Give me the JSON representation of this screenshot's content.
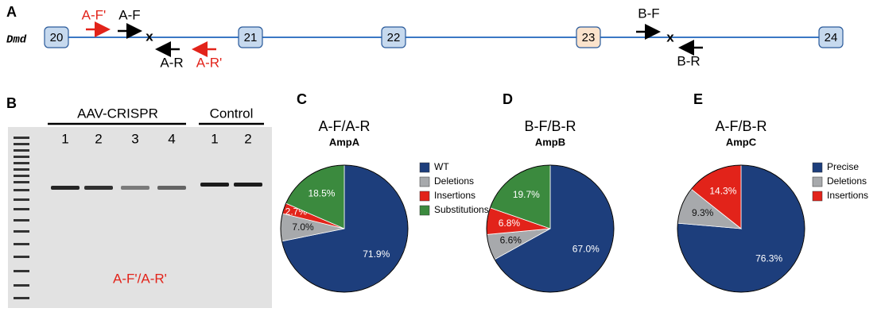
{
  "panel_a": {
    "letter": "A",
    "gene": "Dmd",
    "exons": [
      "20",
      "21",
      "22",
      "23",
      "24"
    ],
    "primers": {
      "a_f_prime": "A-F'",
      "a_f": "A-F",
      "a_r": "A-R",
      "a_r_prime": "A-R'",
      "b_f": "B-F",
      "b_r": "B-R"
    },
    "cut_marks": [
      "x",
      "x"
    ]
  },
  "panel_b": {
    "letter": "B",
    "group_1": "AAV-CRISPR",
    "group_2": "Control",
    "lanes": [
      "1",
      "2",
      "3",
      "4",
      "1",
      "2"
    ],
    "primer_pair": "A-F'/A-R'"
  },
  "chart_data": [
    {
      "type": "pie",
      "panel": "C",
      "title": "A-F/A-R",
      "subtitle": "AmpA",
      "labels": [
        "WT",
        "Deletions",
        "Insertions",
        "Substitutions"
      ],
      "values": [
        71.9,
        7.0,
        2.7,
        18.5
      ],
      "value_labels": [
        "71.9%",
        "7.0%",
        "2.7%",
        "18.5%"
      ],
      "colors": [
        "#1d3e7c",
        "#a7a9ac",
        "#e2231a",
        "#3b8a3e"
      ]
    },
    {
      "type": "pie",
      "panel": "D",
      "title": "B-F/B-R",
      "subtitle": "AmpB",
      "values": [
        67.0,
        6.6,
        6.8,
        19.7
      ],
      "value_labels": [
        "67.0%",
        "6.6%",
        "6.8%",
        "19.7%"
      ],
      "colors": [
        "#1d3e7c",
        "#a7a9ac",
        "#e2231a",
        "#3b8a3e"
      ]
    },
    {
      "type": "pie",
      "panel": "E",
      "title": "A-F/B-R",
      "subtitle": "AmpC",
      "labels": [
        "Precise",
        "Deletions",
        "Insertions"
      ],
      "values": [
        76.3,
        9.3,
        14.3
      ],
      "value_labels": [
        "76.3%",
        "9.3%",
        "14.3%"
      ],
      "colors": [
        "#1d3e7c",
        "#a7a9ac",
        "#e2231a"
      ]
    }
  ]
}
